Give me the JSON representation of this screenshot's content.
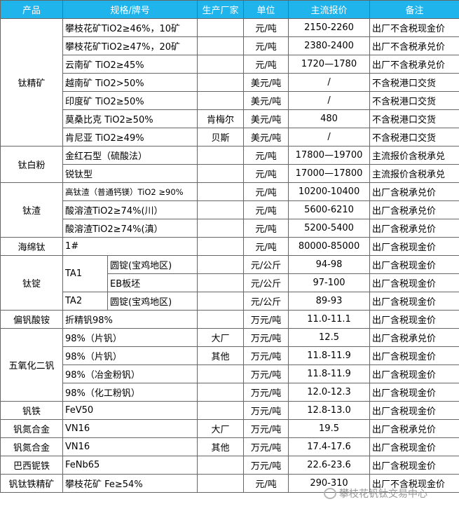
{
  "header": [
    "产品",
    "规格/牌号",
    "生产厂家",
    "单位",
    "主流报价",
    "备注"
  ],
  "groups": [
    {
      "product": "钛精矿",
      "items": [
        {
          "spec": "攀枝花矿TiO2≥46%，10矿",
          "unit": "元/吨",
          "price": "2150-2260",
          "note": "出厂不含税现金价"
        },
        {
          "spec": "攀枝花矿TiO2≥47%，20矿",
          "unit": "元/吨",
          "price": "2380-2400",
          "note": "出厂不含税承兑价"
        },
        {
          "spec": "云南矿 TiO2≥45%",
          "unit": "元/吨",
          "price": "1720—1780",
          "note": "出厂不含税承兑价"
        },
        {
          "spec": "越南矿 TiO2>50%",
          "unit": "美元/吨",
          "price": "/",
          "note": "不含税港口交货"
        },
        {
          "spec": "印度矿 TiO2≥50%",
          "unit": "美元/吨",
          "price": "/",
          "note": "不含税港口交货"
        },
        {
          "spec": "莫桑比克 TiO2≥50%",
          "maker": "肯梅尔",
          "unit": "美元/吨",
          "price": "480",
          "note": "不含税港口交货"
        },
        {
          "spec": "肯尼亚 TiO2≥49%",
          "maker": "贝斯",
          "unit": "美元/吨",
          "price": "/",
          "note": "不含税港口交货"
        }
      ]
    },
    {
      "product": "钛白粉",
      "items": [
        {
          "spec": "金红石型（硫酸法）",
          "unit": "元/吨",
          "price": "17800—19700",
          "note": "主流报价含税承兑"
        },
        {
          "spec": "锐钛型",
          "unit": "元/吨",
          "price": "17000—17800",
          "note": "主流报价含税承兑"
        }
      ]
    },
    {
      "product": "钛渣",
      "items": [
        {
          "spec": "高钛渣（普通钙镁）TiO2 ≥90%",
          "unit": "元/吨",
          "price": "10200-10400",
          "note": "出厂含税承兑价"
        },
        {
          "spec": "酸溶渣TiO2≥74%(川）",
          "unit": "元/吨",
          "price": "5600-6210",
          "note": "出厂含税承兑价"
        },
        {
          "spec": "酸溶渣TiO2≥74%(滇）",
          "unit": "元/吨",
          "price": "5200-5400",
          "note": "出厂含税承兑价"
        }
      ]
    },
    {
      "product": "海绵钛",
      "items": [
        {
          "spec": "1#",
          "unit": "元/吨",
          "price": "80000-85000",
          "note": "出厂含税现金价"
        }
      ]
    },
    {
      "product": "钛锭",
      "items": [
        {
          "grade": "TA1",
          "forms": [
            {
              "form": "圆锭(宝鸡地区)",
              "unit": "元/公斤",
              "price": "94-98",
              "note": "出厂含税现金价"
            },
            {
              "form": "EB板坯",
              "unit": "元/公斤",
              "price": "97-100",
              "note": "出厂含税现金价"
            }
          ]
        },
        {
          "grade": "TA2",
          "forms": [
            {
              "form": "圆锭(宝鸡地区)",
              "unit": "元/公斤",
              "price": "89-93",
              "note": "出厂含税现金价"
            }
          ]
        }
      ]
    },
    {
      "product": "偏钒酸铵",
      "items": [
        {
          "spec": "折精钒98%",
          "unit": "万元/吨",
          "price": "11.0-11.1",
          "note": "出厂含税现金价"
        }
      ]
    },
    {
      "product": "五氧化二钒",
      "items": [
        {
          "spec": "98%（片钒）",
          "maker": "大厂",
          "unit": "万元/吨",
          "price": "12.5",
          "note": "出厂含税承兑价"
        },
        {
          "spec": "98%（片钒）",
          "maker": "其他",
          "unit": "万元/吨",
          "price": "11.8-11.9",
          "note": "出厂含税现金价"
        },
        {
          "spec": "98%（冶金粉钒）",
          "unit": "万元/吨",
          "price": "11.8-11.9",
          "note": "出厂含税现金价"
        },
        {
          "spec": "98%（化工粉钒）",
          "unit": "万元/吨",
          "price": "12.0-12.3",
          "note": "出厂含税现金价"
        }
      ]
    },
    {
      "product": "钒铁",
      "items": [
        {
          "spec": "FeV50",
          "unit": "万元/吨",
          "price": "12.8-13.0",
          "note": "出厂含税现金价"
        }
      ]
    },
    {
      "product": "钒氮合金",
      "items": [
        {
          "spec": "VN16",
          "maker": "大厂",
          "unit": "万元/吨",
          "price": "19.5",
          "note": "出厂含税承兑价"
        }
      ]
    },
    {
      "product": "钒氮合金",
      "items": [
        {
          "spec": "VN16",
          "maker": "其他",
          "unit": "万元/吨",
          "price": "17.4-17.6",
          "note": "出厂含税现金价"
        }
      ]
    },
    {
      "product": "巴西铌铁",
      "items": [
        {
          "spec": "FeNb65",
          "unit": "万元/吨",
          "price": "22.6-23.6",
          "note": "出厂含税现金价"
        }
      ]
    },
    {
      "product": "钒钛铁精矿",
      "items": [
        {
          "spec": "攀枝花矿 Fe≥54%",
          "unit": "元/吨",
          "price": "290-310",
          "note": "出厂不含税现金价"
        }
      ]
    }
  ],
  "watermark": "攀枝花钒钛交易中心"
}
